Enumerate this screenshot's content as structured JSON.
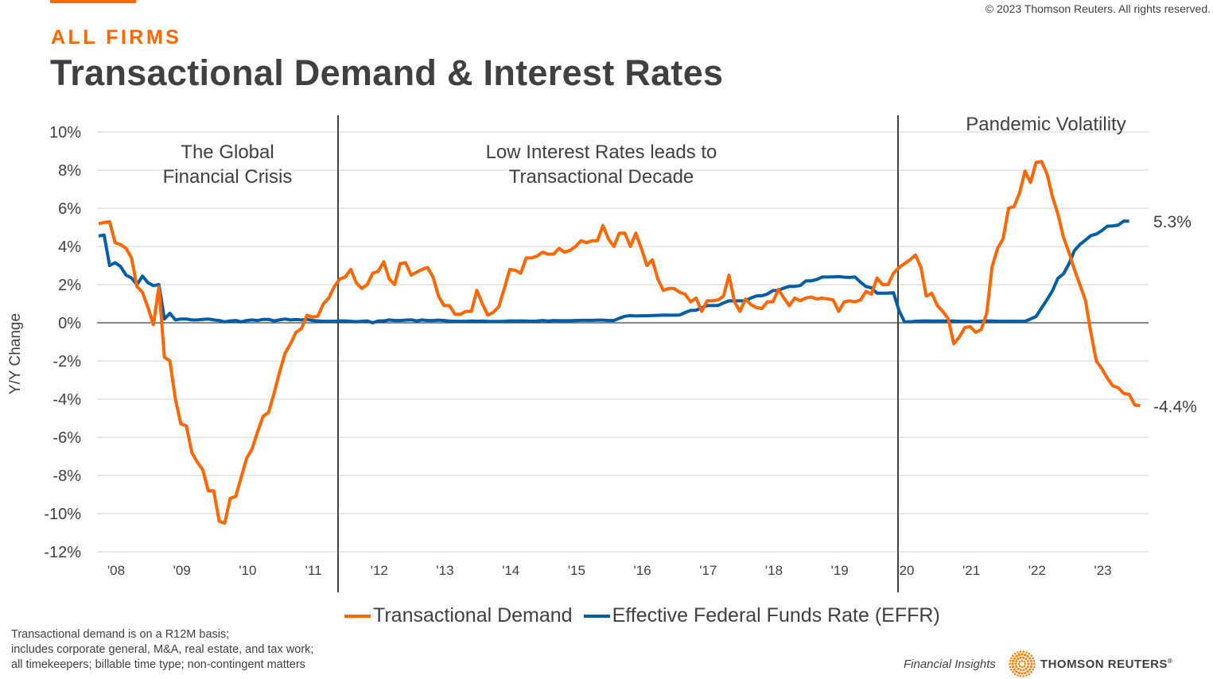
{
  "header": {
    "copyright": "© 2023 Thomson Reuters. All rights reserved.",
    "eyebrow": "ALL FIRMS",
    "title": "Transactional Demand & Interest Rates"
  },
  "chart_data": {
    "type": "line",
    "title": "Transactional Demand & Interest Rates",
    "xlabel": "",
    "ylabel": "Y/Y Change",
    "ylim": [
      -12,
      10
    ],
    "y_ticks": [
      10,
      8,
      6,
      4,
      2,
      0,
      -2,
      -4,
      -6,
      -8,
      -10,
      -12
    ],
    "y_tick_labels": [
      "10%",
      "8%",
      "6%",
      "4%",
      "2%",
      "0%",
      "-2%",
      "-4%",
      "-6%",
      "-8%",
      "-10%",
      "-12%"
    ],
    "x_tick_labels": [
      "'08",
      "'09",
      "'10",
      "'11",
      "'12",
      "'13",
      "'14",
      "'15",
      "'16",
      "'17",
      "'18",
      "'19",
      "'20",
      "'21",
      "'22",
      "'23"
    ],
    "x_start": "2008-01",
    "x_end": "2023-08",
    "frequency": "monthly",
    "grid": true,
    "legend_position": "bottom",
    "annotations": [
      {
        "text_lines": [
          "The Global",
          "Financial Crisis"
        ],
        "period": "2008-2011"
      },
      {
        "text_lines": [
          "Low Interest Rates leads to",
          "Transactional Decade"
        ],
        "period": "2011-2019"
      },
      {
        "text_lines": [
          "Pandemic Volatility"
        ],
        "period": "2020-2023"
      }
    ],
    "dividers": [
      "2011-06",
      "2020-02"
    ],
    "end_labels": {
      "Transactional Demand": "-4.4%",
      "Effective Federal Funds Rate (EFFR)": "5.3%"
    },
    "series": [
      {
        "name": "Transactional Demand",
        "color": "#ff6600",
        "values": [
          5.2,
          5.25,
          5.3,
          4.2,
          4.1,
          3.9,
          3.4,
          1.9,
          1.6,
          0.8,
          -0.1,
          1.9,
          -1.8,
          -2.0,
          -4.0,
          -5.3,
          -5.4,
          -6.8,
          -7.3,
          -7.7,
          -8.8,
          -8.8,
          -10.4,
          -10.5,
          -9.2,
          -9.1,
          -8.1,
          -7.1,
          -6.6,
          -5.7,
          -4.9,
          -4.7,
          -3.7,
          -2.6,
          -1.6,
          -1.1,
          -0.5,
          -0.3,
          0.4,
          0.3,
          0.35,
          1.0,
          1.3,
          1.9,
          2.3,
          2.4,
          2.8,
          2.1,
          1.8,
          2.0,
          2.6,
          2.7,
          3.2,
          2.3,
          2.0,
          3.1,
          3.15,
          2.5,
          2.65,
          2.8,
          2.9,
          2.4,
          1.4,
          0.9,
          0.9,
          0.45,
          0.45,
          0.6,
          0.6,
          1.7,
          1.0,
          0.4,
          0.55,
          0.85,
          1.8,
          2.8,
          2.75,
          2.6,
          3.4,
          3.4,
          3.5,
          3.7,
          3.6,
          3.6,
          3.9,
          3.7,
          3.8,
          4.0,
          4.3,
          4.2,
          4.3,
          4.3,
          5.1,
          4.4,
          4.0,
          4.7,
          4.7,
          4.0,
          4.7,
          3.9,
          3.0,
          3.3,
          2.3,
          1.7,
          1.8,
          1.8,
          1.6,
          1.5,
          1.1,
          1.3,
          0.6,
          1.15,
          1.15,
          1.2,
          1.4,
          2.5,
          1.1,
          0.6,
          1.25,
          0.95,
          0.8,
          0.75,
          1.1,
          1.1,
          1.75,
          1.3,
          0.9,
          1.3,
          1.15,
          1.3,
          1.35,
          1.25,
          1.3,
          1.25,
          1.2,
          0.6,
          1.1,
          1.15,
          1.1,
          1.2,
          1.65,
          1.5,
          2.35,
          2.0,
          2.0,
          2.6,
          2.9,
          3.1,
          3.3,
          3.55,
          2.9,
          1.4,
          1.55,
          0.9,
          0.6,
          0.2,
          -1.1,
          -0.75,
          -0.25,
          -0.2,
          -0.5,
          -0.35,
          0.5,
          2.95,
          3.9,
          4.4,
          6.0,
          6.1,
          6.8,
          7.95,
          7.35,
          8.4,
          8.45,
          7.8,
          6.6,
          5.7,
          4.5,
          3.7,
          2.8,
          2.0,
          1.2,
          -0.5,
          -2.0,
          -2.4,
          -2.9,
          -3.3,
          -3.4,
          -3.7,
          -3.75,
          -4.3,
          -4.35
        ]
      },
      {
        "name": "Effective Federal Funds Rate (EFFR)",
        "color": "#005da8",
        "values": [
          4.55,
          4.6,
          3.0,
          3.15,
          2.95,
          2.5,
          2.35,
          2.0,
          2.45,
          2.1,
          1.95,
          2.0,
          0.2,
          0.5,
          0.15,
          0.2,
          0.2,
          0.15,
          0.15,
          0.18,
          0.2,
          0.15,
          0.12,
          0.05,
          0.1,
          0.12,
          0.05,
          0.12,
          0.15,
          0.12,
          0.18,
          0.18,
          0.1,
          0.15,
          0.2,
          0.15,
          0.17,
          0.15,
          0.18,
          0.12,
          0.1,
          0.08,
          0.08,
          0.08,
          0.1,
          0.1,
          0.08,
          0.06,
          0.08,
          0.1,
          0.0,
          0.1,
          0.1,
          0.15,
          0.12,
          0.12,
          0.14,
          0.16,
          0.1,
          0.15,
          0.12,
          0.12,
          0.14,
          0.12,
          0.09,
          0.08,
          0.08,
          0.08,
          0.09,
          0.08,
          0.09,
          0.07,
          0.07,
          0.07,
          0.08,
          0.1,
          0.09,
          0.1,
          0.09,
          0.08,
          0.09,
          0.12,
          0.09,
          0.12,
          0.11,
          0.11,
          0.11,
          0.12,
          0.13,
          0.13,
          0.13,
          0.14,
          0.14,
          0.12,
          0.12,
          0.24,
          0.34,
          0.38,
          0.36,
          0.37,
          0.37,
          0.38,
          0.39,
          0.4,
          0.4,
          0.4,
          0.41,
          0.54,
          0.65,
          0.66,
          0.79,
          0.9,
          0.91,
          0.91,
          1.04,
          1.15,
          1.15,
          1.15,
          1.16,
          1.3,
          1.41,
          1.42,
          1.51,
          1.69,
          1.7,
          1.82,
          1.91,
          1.91,
          1.95,
          2.19,
          2.2,
          2.27,
          2.4,
          2.4,
          2.41,
          2.42,
          2.39,
          2.38,
          2.4,
          2.13,
          1.9,
          1.83,
          1.55,
          1.55,
          1.55,
          1.58,
          0.65,
          0.05,
          0.05,
          0.08,
          0.09,
          0.1,
          0.09,
          0.09,
          0.09,
          0.09,
          0.09,
          0.08,
          0.07,
          0.07,
          0.06,
          0.08,
          0.1,
          0.09,
          0.08,
          0.08,
          0.08,
          0.08,
          0.08,
          0.08,
          0.2,
          0.33,
          0.77,
          1.21,
          1.68,
          2.33,
          2.56,
          3.08,
          3.78,
          4.1,
          4.33,
          4.57,
          4.65,
          4.83,
          5.06,
          5.08,
          5.12,
          5.33,
          5.33
        ]
      }
    ]
  },
  "legend": {
    "items": [
      {
        "label": "Transactional Demand",
        "color": "#ff6600"
      },
      {
        "label": "Effective Federal Funds Rate (EFFR)",
        "color": "#005da8"
      }
    ]
  },
  "footnote": {
    "lines": [
      "Transactional demand is on a R12M basis;",
      "includes corporate general, M&A, real estate, and tax work;",
      "all timekeepers; billable time type; non-contingent matters"
    ]
  },
  "brand": {
    "tagline": "Financial Insights",
    "logo_icon": "thomson-reuters-dot-logo-icon",
    "name": "THOMSON REUTERS",
    "registered": "®"
  }
}
